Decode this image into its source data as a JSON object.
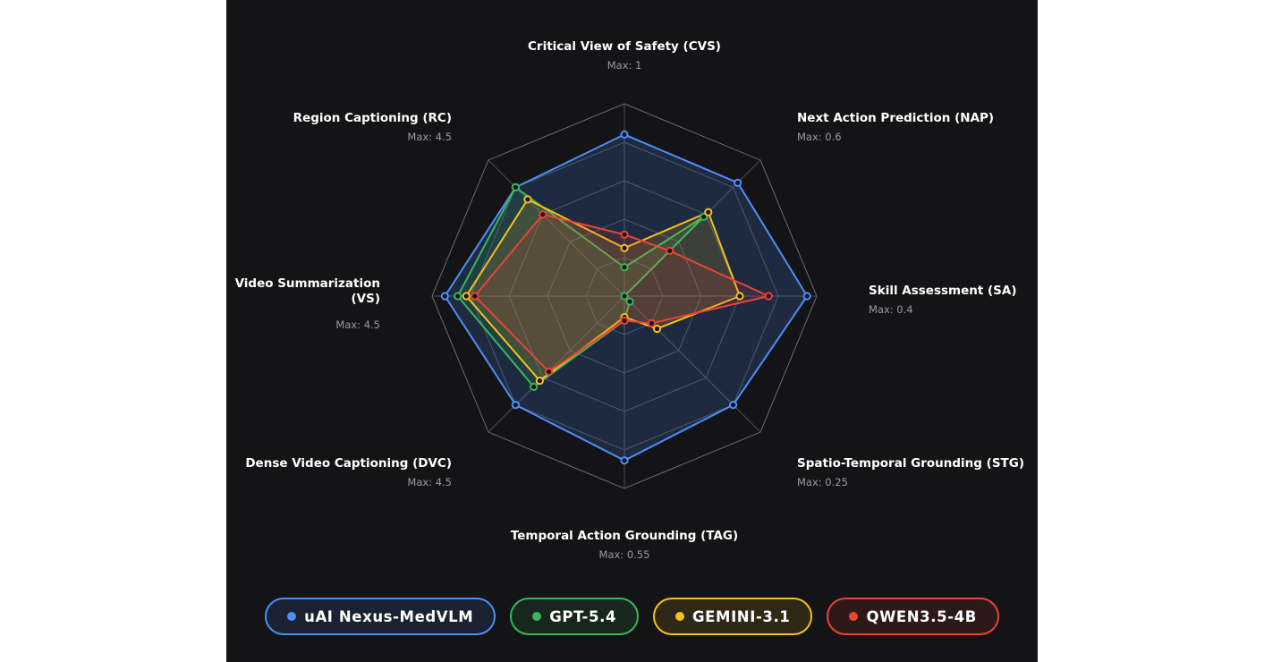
{
  "chart_data": {
    "type": "radar",
    "axes": [
      {
        "name": "Critical View of Safety (CVS)",
        "max_label": "Max: 1",
        "max": 1
      },
      {
        "name": "Next Action Prediction (NAP)",
        "max_label": "Max: 0.6",
        "max": 0.6
      },
      {
        "name": "Skill Assessment (SA)",
        "max_label": "Max: 0.4",
        "max": 0.4
      },
      {
        "name": "Spatio-Temporal Grounding (STG)",
        "max_label": "Max: 0.25",
        "max": 0.25
      },
      {
        "name": "Temporal Action Grounding (TAG)",
        "max_label": "Max: 0.55",
        "max": 0.55
      },
      {
        "name": "Dense Video Captioning (DVC)",
        "max_label": "Max: 4.5",
        "max": 4.5
      },
      {
        "name": "Video Summarization (VS)",
        "max_label": "Max: 4.5",
        "max": 4.5
      },
      {
        "name": "Region Captioning (RC)",
        "max_label": "Max: 4.5",
        "max": 4.5
      }
    ],
    "series": [
      {
        "name": "uAI Nexus-MedVLM",
        "color": "#4d8ff7",
        "values": [
          0.84,
          0.5,
          0.38,
          0.2,
          0.47,
          3.6,
          4.2,
          3.6
        ]
      },
      {
        "name": "GPT-5.4",
        "color": "#3bb55e",
        "values": [
          0.15,
          0.35,
          0.0,
          0.01,
          0.07,
          3.0,
          3.9,
          3.6
        ]
      },
      {
        "name": "GEMINI-3.1",
        "color": "#f5c01e",
        "values": [
          0.25,
          0.37,
          0.24,
          0.06,
          0.06,
          2.8,
          3.7,
          3.2
        ]
      },
      {
        "name": "QWEN3.5-4B",
        "color": "#ec4335",
        "values": [
          0.32,
          0.2,
          0.3,
          0.05,
          0.07,
          2.5,
          3.5,
          2.7
        ]
      }
    ],
    "grid_levels": 5,
    "legend": "bottom"
  }
}
